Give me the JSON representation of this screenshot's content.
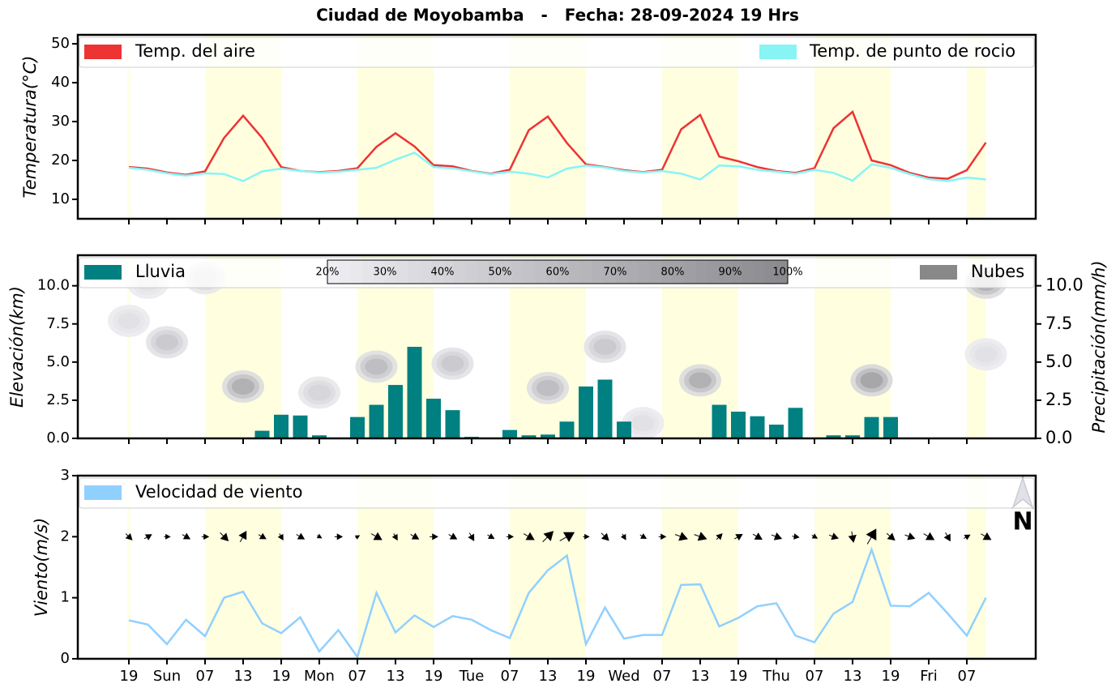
{
  "title": "Ciudad de Moyobamba   -   Fecha: 28-09-2024 19 Hrs",
  "chart_data": [
    {
      "type": "line",
      "ylabel": "Temperatura(°C)",
      "ylim": [
        5,
        52.3
      ],
      "yticks": [
        10,
        20,
        30,
        40,
        50
      ],
      "series": [
        {
          "name": "Temp. del aire",
          "color": "#ee3333",
          "values": [
            18.3,
            17.9,
            16.9,
            16.3,
            17.2,
            25.8,
            31.5,
            25.8,
            18.3,
            17.3,
            17.0,
            17.3,
            18.0,
            23.5,
            27.0,
            23.6,
            18.8,
            18.5,
            17.3,
            16.6,
            17.6,
            27.8,
            31.3,
            24.5,
            19.0,
            18.3,
            17.5,
            17.0,
            17.6,
            28.0,
            31.7,
            21.0,
            19.8,
            18.3,
            17.3,
            16.8,
            18.0,
            28.3,
            32.5,
            20.0,
            18.8,
            16.8,
            15.6,
            15.3,
            17.5,
            24.6
          ]
        },
        {
          "name": "Temp. de punto de rocio",
          "color": "#88f4f4",
          "values": [
            18.1,
            17.6,
            16.7,
            16.1,
            16.7,
            16.5,
            14.7,
            17.2,
            17.9,
            17.3,
            16.9,
            17.1,
            17.6,
            18.1,
            20.2,
            22.0,
            18.3,
            18.0,
            17.2,
            16.5,
            17.1,
            16.6,
            15.6,
            17.9,
            18.7,
            18.2,
            17.3,
            16.9,
            17.3,
            16.6,
            15.1,
            18.7,
            18.5,
            17.6,
            17.1,
            16.6,
            17.6,
            16.8,
            14.8,
            19.0,
            18.1,
            16.5,
            15.2,
            14.7,
            15.6,
            15.1
          ]
        }
      ]
    },
    {
      "type": "bar",
      "ylabel": "Elevación(km)",
      "y2label": "Precipitación(mm/h)",
      "ylim": [
        0,
        12
      ],
      "yticks": [
        {
          "value": 0,
          "label": "0.0"
        },
        2.5,
        {
          "value": 5,
          "label": "5.0"
        },
        7.5,
        {
          "value": 10,
          "label": "10.0"
        }
      ],
      "y2lim": [
        0,
        12
      ],
      "y2ticks": [
        {
          "value": 0,
          "label": "0.0"
        },
        2.5,
        {
          "value": 5,
          "label": "5.0"
        },
        7.5,
        {
          "value": 10,
          "label": "10.0"
        }
      ],
      "series": [
        {
          "name": "Lluvia",
          "color": "#008080",
          "axis": "y2",
          "values": [
            0,
            0,
            0,
            0,
            0,
            0,
            0,
            0.5,
            1.55,
            1.5,
            0.2,
            0,
            1.4,
            2.2,
            3.5,
            6.0,
            2.6,
            1.85,
            0.1,
            0,
            0.55,
            0.2,
            0.25,
            1.1,
            3.4,
            3.85,
            1.1,
            0,
            0,
            0,
            0,
            2.2,
            1.75,
            1.45,
            0.9,
            2.0,
            0,
            0.2,
            0.2,
            1.4,
            1.4,
            0,
            0,
            0,
            0,
            0
          ]
        }
      ],
      "clouds": {
        "name": "Nubes",
        "color": "#888888",
        "colorbar_ticks": [
          {
            "value": 20,
            "label": "20%"
          },
          {
            "value": 30,
            "label": "30%"
          },
          {
            "value": 40,
            "label": "40%"
          },
          {
            "value": 50,
            "label": "50%"
          },
          {
            "value": 60,
            "label": "60%"
          },
          {
            "value": 70,
            "label": "70%"
          },
          {
            "value": 80,
            "label": "80%"
          },
          {
            "value": 90,
            "label": "90%"
          },
          {
            "value": 100,
            "label": "100%"
          }
        ],
        "cells": [
          [
            0,
            7.7,
            30
          ],
          [
            1,
            10.2,
            30
          ],
          [
            2,
            6.3,
            50
          ],
          [
            4,
            10.5,
            40
          ],
          [
            6,
            3.4,
            70
          ],
          [
            10,
            3.0,
            40
          ],
          [
            13,
            4.7,
            60
          ],
          [
            17,
            4.9,
            50
          ],
          [
            22,
            3.3,
            60
          ],
          [
            25,
            6.0,
            50
          ],
          [
            27,
            1.0,
            30
          ],
          [
            30,
            3.8,
            70
          ],
          [
            39,
            3.8,
            80
          ],
          [
            45,
            10.2,
            70
          ],
          [
            45,
            5.5,
            30
          ]
        ]
      }
    },
    {
      "type": "line",
      "ylabel": "Viento(m/s)",
      "ylim": [
        0,
        3
      ],
      "yticks": [
        0,
        1,
        2,
        3
      ],
      "categories": [
        "19",
        null,
        "Sun",
        null,
        "07",
        null,
        "13",
        null,
        "19",
        null,
        "Mon",
        null,
        "07",
        null,
        "13",
        null,
        "19",
        null,
        "Tue",
        null,
        "07",
        null,
        "13",
        null,
        "19",
        null,
        "Wed",
        null,
        "07",
        null,
        "13",
        null,
        "19",
        null,
        "Thu",
        null,
        "07",
        null,
        "13",
        null,
        "19",
        null,
        "Fri",
        null,
        "07",
        null
      ],
      "series": [
        {
          "name": "Velocidad de viento",
          "color": "#90d0ff",
          "values": [
            0.63,
            0.56,
            0.24,
            0.64,
            0.37,
            1.0,
            1.1,
            0.58,
            0.42,
            0.68,
            0.12,
            0.47,
            0.03,
            1.08,
            0.43,
            0.71,
            0.52,
            0.7,
            0.64,
            0.47,
            0.34,
            1.08,
            1.45,
            1.69,
            0.24,
            0.84,
            0.33,
            0.39,
            0.39,
            1.21,
            1.22,
            0.53,
            0.67,
            0.86,
            0.91,
            0.38,
            0.27,
            0.74,
            0.93,
            1.79,
            0.87,
            0.86,
            1.08,
            0.74,
            0.38,
            1.0
          ]
        }
      ],
      "wind_direction": [
        135,
        60,
        90,
        120,
        90,
        135,
        30,
        120,
        150,
        120,
        120,
        90,
        60,
        120,
        150,
        120,
        90,
        120,
        150,
        120,
        90,
        120,
        45,
        60,
        90,
        135,
        150,
        120,
        90,
        110,
        110,
        45,
        60,
        120,
        110,
        100,
        120,
        110,
        170,
        30,
        130,
        110,
        120,
        150,
        60,
        120
      ],
      "north_label": "N"
    }
  ]
}
